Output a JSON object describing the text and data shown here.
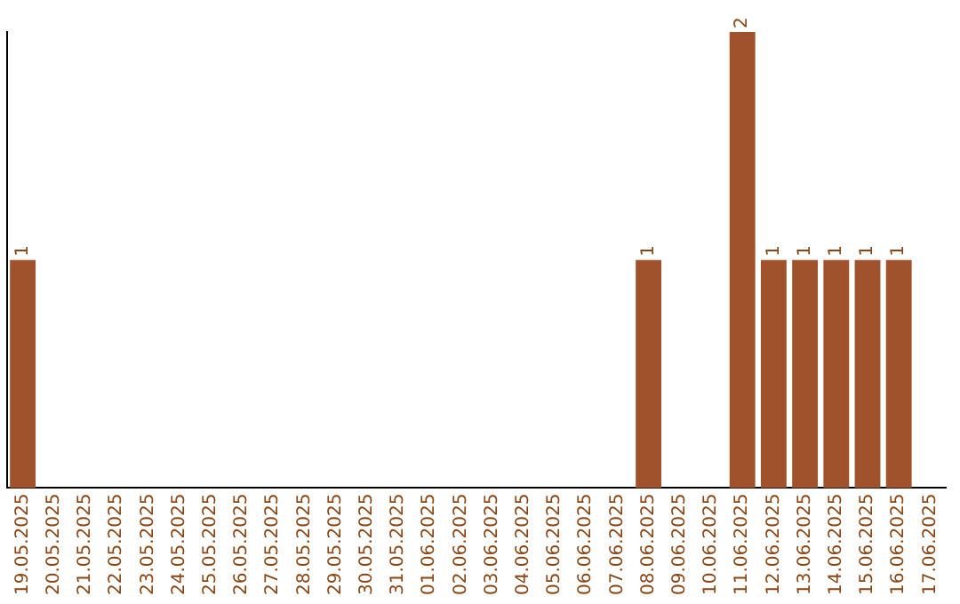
{
  "chart_data": {
    "type": "bar",
    "categories": [
      "19.05.2025",
      "20.05.2025",
      "21.05.2025",
      "22.05.2025",
      "23.05.2025",
      "24.05.2025",
      "25.05.2025",
      "26.05.2025",
      "27.05.2025",
      "28.05.2025",
      "29.05.2025",
      "30.05.2025",
      "31.05.2025",
      "01.06.2025",
      "02.06.2025",
      "03.06.2025",
      "04.06.2025",
      "05.06.2025",
      "06.06.2025",
      "07.06.2025",
      "08.06.2025",
      "09.06.2025",
      "10.06.2025",
      "11.06.2025",
      "12.06.2025",
      "13.06.2025",
      "14.06.2025",
      "15.06.2025",
      "16.06.2025",
      "17.06.2025"
    ],
    "values": [
      1,
      0,
      0,
      0,
      0,
      0,
      0,
      0,
      0,
      0,
      0,
      0,
      0,
      0,
      0,
      0,
      0,
      0,
      0,
      0,
      1,
      0,
      0,
      2,
      1,
      1,
      1,
      1,
      1,
      0
    ],
    "color": "#a0522d",
    "ylim": [
      0,
      2
    ],
    "value_labels": [
      "1",
      null,
      null,
      null,
      null,
      null,
      null,
      null,
      null,
      null,
      null,
      null,
      null,
      null,
      null,
      null,
      null,
      null,
      null,
      null,
      "1",
      null,
      null,
      "2",
      "1",
      "1",
      "1",
      "1",
      "1",
      null
    ],
    "tick_labels": "x",
    "grid": false,
    "legend": false
  }
}
